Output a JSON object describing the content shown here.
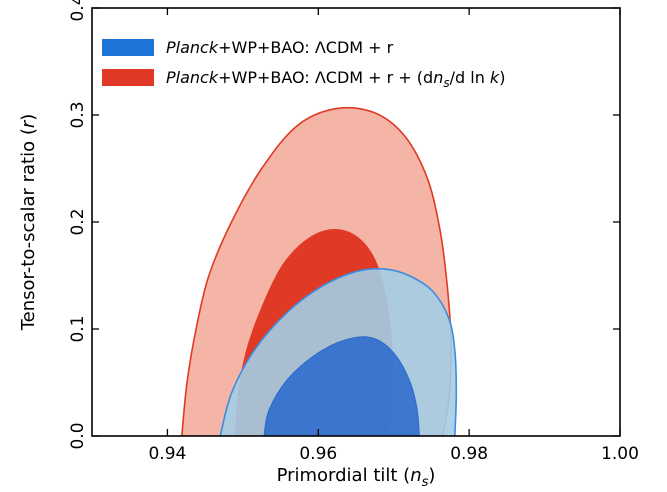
{
  "chart_data": {
    "type": "contour",
    "xlabel": "Primordial tilt (n_s)",
    "ylabel": "Tensor-to-scalar ratio (r)",
    "xlim": [
      0.93,
      1.0
    ],
    "ylim": [
      0.0,
      0.4
    ],
    "x_ticks": [
      "0.94",
      "0.96",
      "0.98",
      "1.00"
    ],
    "y_ticks": [
      "0.0",
      "0.1",
      "0.2",
      "0.3",
      "0.4"
    ],
    "legend": [
      {
        "label": "Planck+WP+BAO: ΛCDM + r",
        "color": "#1f74d7"
      },
      {
        "label": "Planck+WP+BAO: ΛCDM + r + (dn_s/d ln k)",
        "color": "#e03a26"
      }
    ],
    "series": [
      {
        "name": "Planck+WP+BAO: ΛCDM + r + (dn_s/d ln k)",
        "contours": [
          {
            "level": "95%",
            "fill": "#f4b5a6",
            "stroke": "#e03a26",
            "points": [
              [
                0.9419,
                0.0
              ],
              [
                0.9426,
                0.05
              ],
              [
                0.9438,
                0.1
              ],
              [
                0.9455,
                0.15
              ],
              [
                0.9485,
                0.2
              ],
              [
                0.9525,
                0.25
              ],
              [
                0.9572,
                0.29
              ],
              [
                0.9624,
                0.306
              ],
              [
                0.9675,
                0.302
              ],
              [
                0.9715,
                0.28
              ],
              [
                0.9745,
                0.24
              ],
              [
                0.9762,
                0.19
              ],
              [
                0.9771,
                0.14
              ],
              [
                0.9776,
                0.09
              ],
              [
                0.9774,
                0.04
              ],
              [
                0.9765,
                0.0
              ]
            ]
          },
          {
            "level": "68%",
            "fill": "#e03a26",
            "stroke": "#e03a26",
            "points": [
              [
                0.949,
                0.0
              ],
              [
                0.9494,
                0.04
              ],
              [
                0.9505,
                0.08
              ],
              [
                0.9525,
                0.12
              ],
              [
                0.9553,
                0.16
              ],
              [
                0.9588,
                0.185
              ],
              [
                0.9623,
                0.193
              ],
              [
                0.9655,
                0.184
              ],
              [
                0.9678,
                0.16
              ],
              [
                0.9692,
                0.12
              ],
              [
                0.9698,
                0.08
              ],
              [
                0.9698,
                0.04
              ],
              [
                0.9692,
                0.0
              ]
            ]
          }
        ]
      },
      {
        "name": "Planck+WP+BAO: ΛCDM + r",
        "contours": [
          {
            "level": "95%",
            "fill": "#a4cde6",
            "stroke": "#3b8de0",
            "points": [
              [
                0.947,
                0.0
              ],
              [
                0.9485,
                0.04
              ],
              [
                0.9515,
                0.08
              ],
              [
                0.9558,
                0.115
              ],
              [
                0.9605,
                0.14
              ],
              [
                0.9652,
                0.154
              ],
              [
                0.9688,
                0.156
              ],
              [
                0.972,
                0.15
              ],
              [
                0.9752,
                0.135
              ],
              [
                0.9773,
                0.11
              ],
              [
                0.9781,
                0.08
              ],
              [
                0.9783,
                0.04
              ],
              [
                0.9781,
                0.0
              ]
            ]
          },
          {
            "level": "68%",
            "fill": "#2968cc",
            "stroke": "#2968cc",
            "points": [
              [
                0.9528,
                0.0
              ],
              [
                0.9535,
                0.025
              ],
              [
                0.9562,
                0.055
              ],
              [
                0.9605,
                0.08
              ],
              [
                0.9648,
                0.092
              ],
              [
                0.9678,
                0.09
              ],
              [
                0.9703,
                0.075
              ],
              [
                0.9722,
                0.05
              ],
              [
                0.9731,
                0.025
              ],
              [
                0.9734,
                0.0
              ]
            ]
          }
        ]
      }
    ]
  }
}
